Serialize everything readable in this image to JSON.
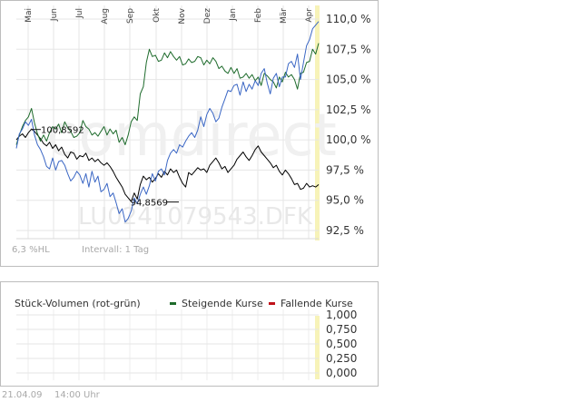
{
  "chart_data": [
    {
      "type": "line",
      "x_ticks": [
        "Mai",
        "Jun",
        "Jul",
        "Aug",
        "Sep",
        "Okt",
        "Nov",
        "Dez",
        "Jan",
        "Feb",
        "Mär",
        "Apr"
      ],
      "y_ticks": [
        "110,0 %",
        "107,5 %",
        "105,0 %",
        "102,5 %",
        "100,0 %",
        "97,5 %",
        "95,0 %",
        "92,5 %"
      ],
      "ylim": [
        92.5,
        110
      ],
      "grid": true,
      "watermark": {
        "brand": "comdirect",
        "instrument": "LU0241079543.DFK"
      },
      "annotations": [
        {
          "label": "100,8592",
          "value": 100.8592
        },
        {
          "label": "94,8569",
          "value": 94.8569
        }
      ],
      "footer": {
        "left": "6,3 %HL",
        "interval": "Intervall: 1 Tag"
      },
      "series": [
        {
          "color": "#000000",
          "x": [
            0,
            0.01,
            0.02,
            0.03,
            0.04,
            0.05,
            0.06,
            0.07,
            0.08,
            0.09,
            0.1,
            0.11,
            0.12,
            0.13,
            0.14,
            0.15,
            0.16,
            0.17,
            0.18,
            0.19,
            0.2,
            0.21,
            0.22,
            0.23,
            0.24,
            0.25,
            0.26,
            0.27,
            0.28,
            0.29,
            0.3,
            0.31,
            0.32,
            0.33,
            0.34,
            0.35,
            0.36,
            0.37,
            0.38,
            0.39,
            0.4,
            0.41,
            0.42,
            0.43,
            0.44,
            0.45,
            0.46,
            0.47,
            0.48,
            0.49,
            0.5,
            0.51,
            0.52,
            0.53,
            0.54,
            0.55,
            0.56,
            0.57,
            0.58,
            0.59,
            0.6,
            0.61,
            0.62,
            0.63,
            0.64,
            0.65,
            0.66,
            0.67,
            0.68,
            0.69,
            0.7,
            0.71,
            0.72,
            0.73,
            0.74,
            0.75,
            0.76,
            0.77,
            0.78,
            0.79,
            0.8,
            0.81,
            0.82,
            0.83,
            0.84,
            0.85,
            0.86,
            0.87,
            0.88,
            0.89,
            0.9,
            0.91,
            0.92,
            0.93,
            0.94,
            0.95,
            0.96,
            0.97,
            0.98,
            0.99,
            1
          ],
          "values": [
            100,
            100.3,
            100.5,
            100.2,
            100.6,
            100.9,
            100.7,
            100.4,
            100.1,
            99.7,
            99.5,
            99.8,
            99.3,
            99.6,
            99.1,
            99.4,
            98.8,
            98.5,
            99,
            98.9,
            98.4,
            98.7,
            98.6,
            98.9,
            98.3,
            98.5,
            98.2,
            98.4,
            98.1,
            97.9,
            98.1,
            97.8,
            97.4,
            96.9,
            96.5,
            96.1,
            95.5,
            95.2,
            94.9,
            95.6,
            95.1,
            96.3,
            97,
            96.7,
            96.9,
            96.5,
            96.8,
            97.2,
            96.9,
            97.4,
            97.1,
            97.6,
            97.3,
            97.5,
            96.9,
            96.4,
            96.1,
            97.3,
            97.1,
            97.4,
            97.7,
            97.5,
            97.6,
            97.3,
            97.9,
            98.2,
            98.5,
            98.1,
            97.6,
            97.8,
            97.3,
            97.6,
            97.9,
            98.4,
            98.7,
            99,
            98.6,
            98.3,
            98.7,
            99.2,
            99.5,
            99,
            98.7,
            98.4,
            98.1,
            97.7,
            97.9,
            97.4,
            97.1,
            97.5,
            97.2,
            96.8,
            96.3,
            96.4,
            95.9,
            96,
            96.4,
            96.1,
            96.2,
            96.1,
            96.3
          ]
        },
        {
          "color": "#1e6b2c",
          "x": [
            0,
            0.01,
            0.02,
            0.03,
            0.04,
            0.05,
            0.06,
            0.07,
            0.08,
            0.09,
            0.1,
            0.11,
            0.12,
            0.13,
            0.14,
            0.15,
            0.16,
            0.17,
            0.18,
            0.19,
            0.2,
            0.21,
            0.22,
            0.23,
            0.24,
            0.25,
            0.26,
            0.27,
            0.28,
            0.29,
            0.3,
            0.31,
            0.32,
            0.33,
            0.34,
            0.35,
            0.36,
            0.37,
            0.38,
            0.39,
            0.4,
            0.41,
            0.42,
            0.43,
            0.44,
            0.45,
            0.46,
            0.47,
            0.48,
            0.49,
            0.5,
            0.51,
            0.52,
            0.53,
            0.54,
            0.55,
            0.56,
            0.57,
            0.58,
            0.59,
            0.6,
            0.61,
            0.62,
            0.63,
            0.64,
            0.65,
            0.66,
            0.67,
            0.68,
            0.69,
            0.7,
            0.71,
            0.72,
            0.73,
            0.74,
            0.75,
            0.76,
            0.77,
            0.78,
            0.79,
            0.8,
            0.81,
            0.82,
            0.83,
            0.84,
            0.85,
            0.86,
            0.87,
            0.88,
            0.89,
            0.9,
            0.91,
            0.92,
            0.93,
            0.94,
            0.95,
            0.96,
            0.97,
            0.98,
            0.99,
            1
          ],
          "values": [
            99.6,
            100.4,
            101.1,
            101.6,
            101.9,
            102.6,
            101.4,
            100.5,
            99.9,
            100.4,
            99.9,
            100.6,
            101.1,
            100.9,
            101.3,
            100.6,
            101.5,
            101,
            100.7,
            100.2,
            100.3,
            100.6,
            101.6,
            101.1,
            100.9,
            100.4,
            100.6,
            100.3,
            100.7,
            101.1,
            100.4,
            100.9,
            100.5,
            100.8,
            99.8,
            100.2,
            99.6,
            100.4,
            101.5,
            101.9,
            101.6,
            103.8,
            104.4,
            106.4,
            107.5,
            106.9,
            107,
            106.5,
            106.6,
            107.2,
            106.8,
            107.3,
            106.9,
            106.6,
            106.9,
            106.2,
            106.3,
            106.7,
            106.4,
            106.5,
            106.9,
            106.8,
            106.2,
            106.6,
            106.3,
            106.8,
            106.5,
            105.9,
            106.1,
            105.7,
            105.5,
            106,
            105.5,
            105.9,
            105.1,
            105.2,
            105.5,
            105.1,
            105.4,
            104.9,
            105.2,
            104.5,
            105.5,
            105.3,
            105,
            104.8,
            104.3,
            105.2,
            104.8,
            105.6,
            105.2,
            105.4,
            105,
            104.2,
            105.5,
            105.6,
            106.4,
            106.5,
            107.5,
            107.1,
            108
          ]
        },
        {
          "color": "#3a66c4",
          "x": [
            0,
            0.01,
            0.02,
            0.03,
            0.04,
            0.05,
            0.06,
            0.07,
            0.08,
            0.09,
            0.1,
            0.11,
            0.12,
            0.13,
            0.14,
            0.15,
            0.16,
            0.17,
            0.18,
            0.19,
            0.2,
            0.21,
            0.22,
            0.23,
            0.24,
            0.25,
            0.26,
            0.27,
            0.28,
            0.29,
            0.3,
            0.31,
            0.32,
            0.33,
            0.34,
            0.35,
            0.36,
            0.37,
            0.38,
            0.39,
            0.4,
            0.41,
            0.42,
            0.43,
            0.44,
            0.45,
            0.46,
            0.47,
            0.48,
            0.49,
            0.5,
            0.51,
            0.52,
            0.53,
            0.54,
            0.55,
            0.56,
            0.57,
            0.58,
            0.59,
            0.6,
            0.61,
            0.62,
            0.63,
            0.64,
            0.65,
            0.66,
            0.67,
            0.68,
            0.69,
            0.7,
            0.71,
            0.72,
            0.73,
            0.74,
            0.75,
            0.76,
            0.77,
            0.78,
            0.79,
            0.8,
            0.81,
            0.82,
            0.83,
            0.84,
            0.85,
            0.86,
            0.87,
            0.88,
            0.89,
            0.9,
            0.91,
            0.92,
            0.93,
            0.94,
            0.95,
            0.96,
            0.97,
            0.98,
            0.99,
            1
          ],
          "values": [
            99.3,
            100.5,
            100.9,
            101.5,
            101.2,
            101.7,
            100.4,
            99.6,
            99.2,
            98.6,
            97.8,
            97.6,
            98.5,
            97.5,
            98.2,
            98.3,
            97.9,
            97.2,
            96.6,
            96.9,
            97.4,
            97.1,
            96.4,
            97.2,
            96.1,
            97.4,
            96.5,
            97,
            95.7,
            95.9,
            96.4,
            95.3,
            95.6,
            94.8,
            93.9,
            94.3,
            93.2,
            93.5,
            94.1,
            95.2,
            94.7,
            95.5,
            96.1,
            95.5,
            96.2,
            97.2,
            96.6,
            97.4,
            97.6,
            97.1,
            98.3,
            98.9,
            99.2,
            98.9,
            99.6,
            99.4,
            99.9,
            100.3,
            100.6,
            100.2,
            100.8,
            101.9,
            101.1,
            102.1,
            102.6,
            102.2,
            101.5,
            101.8,
            102.7,
            103.4,
            104.1,
            104,
            104.5,
            104.6,
            103.7,
            104.8,
            104,
            104.6,
            104.2,
            104.9,
            104.5,
            105.5,
            105.9,
            104.7,
            103.8,
            105.1,
            105.5,
            104.4,
            105.2,
            105.2,
            106.3,
            106.5,
            106,
            107.1,
            105,
            106.4,
            107.8,
            108.3,
            109.2,
            109.5,
            109.8
          ]
        }
      ]
    },
    {
      "type": "bar",
      "title": "Stück-Volumen (rot-grün)",
      "legend": [
        {
          "name": "Steigende Kurse",
          "color": "#1e6b2c"
        },
        {
          "name": "Fallende Kurse",
          "color": "#c0121a"
        }
      ],
      "y_ticks": [
        "1,000",
        "0,750",
        "0,500",
        "0,250",
        "0,000"
      ],
      "ylim": [
        0,
        1
      ],
      "grid": true,
      "values": []
    }
  ],
  "timestamp": {
    "date": "21.04.09",
    "time": "14:00 Uhr"
  }
}
